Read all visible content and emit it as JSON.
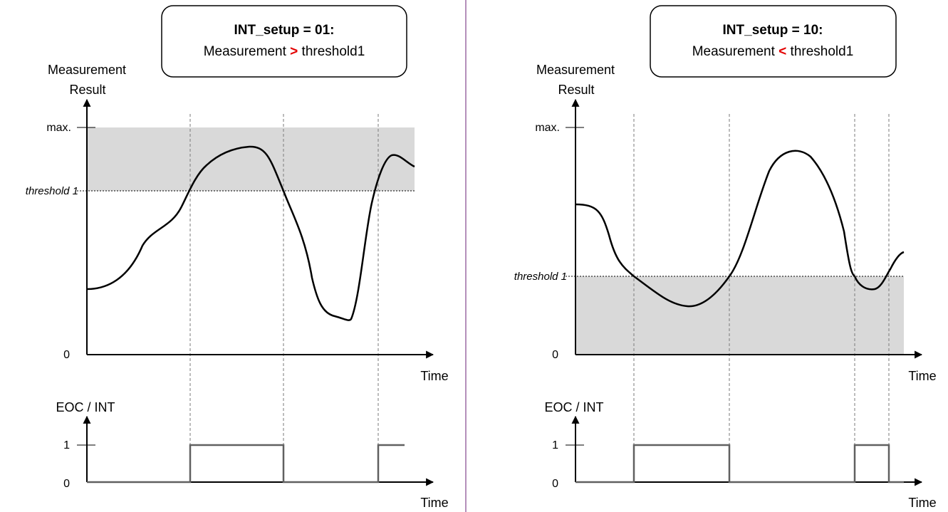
{
  "colors": {
    "divider": "#9c6aa3",
    "shade": "#d9d9d9",
    "signal": "#606060",
    "operator": "#e30000"
  },
  "panels": [
    {
      "box": {
        "title": "INT_setup = 01:",
        "cond_pre": "Measurement ",
        "operator": ">",
        "cond_post": " threshold1"
      },
      "y_label_line1": "Measurement",
      "y_label_line2": "Result",
      "x_label": "Time",
      "tick_max": "max.",
      "tick_threshold": "threshold 1",
      "tick_zero": "0",
      "shaded_region": "above threshold 1",
      "eoc_label": "EOC / INT",
      "eoc_tick_1": "1",
      "eoc_tick_0": "0",
      "eoc_x_label": "Time",
      "eoc_levels": [
        0,
        1,
        0,
        1
      ]
    },
    {
      "box": {
        "title": "INT_setup = 10:",
        "cond_pre": "Measurement ",
        "operator": "<",
        "cond_post": " threshold1"
      },
      "y_label_line1": "Measurement",
      "y_label_line2": "Result",
      "x_label": "Time",
      "tick_max": "max.",
      "tick_threshold": "threshold 1",
      "tick_zero": "0",
      "shaded_region": "below threshold 1",
      "eoc_label": "EOC / INT",
      "eoc_tick_1": "1",
      "eoc_tick_0": "0",
      "eoc_x_label": "Time",
      "eoc_levels": [
        0,
        1,
        0,
        1,
        0
      ]
    }
  ]
}
